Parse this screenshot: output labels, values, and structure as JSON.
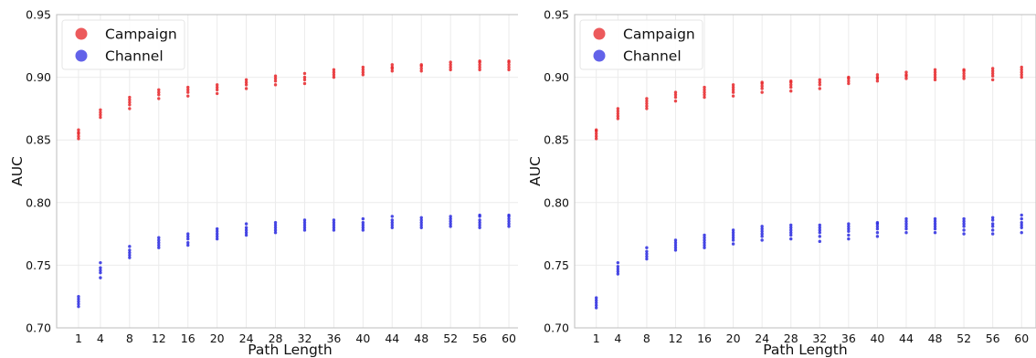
{
  "chart_data": [
    {
      "type": "scatter",
      "title": "",
      "xlabel": "Path Length",
      "ylabel": "AUC",
      "x_ticks": [
        1,
        4,
        8,
        12,
        16,
        20,
        24,
        28,
        32,
        36,
        40,
        44,
        48,
        52,
        56,
        60
      ],
      "y_ticks": [
        0.7,
        0.75,
        0.8,
        0.85,
        0.9,
        0.95
      ],
      "y_tick_labels": [
        "0.70",
        "0.75",
        "0.80",
        "0.85",
        "0.90",
        "0.95"
      ],
      "xlim": [
        -2,
        62
      ],
      "ylim": [
        0.7,
        0.95
      ],
      "grid": true,
      "legend": "top-left",
      "series": [
        {
          "name": "Campaign",
          "color": "#e8272a",
          "points": [
            {
              "x": 1,
              "ys": [
                0.851,
                0.853,
                0.855,
                0.856,
                0.858
              ]
            },
            {
              "x": 4,
              "ys": [
                0.868,
                0.87,
                0.872,
                0.874
              ]
            },
            {
              "x": 8,
              "ys": [
                0.875,
                0.878,
                0.88,
                0.882,
                0.884
              ]
            },
            {
              "x": 12,
              "ys": [
                0.883,
                0.886,
                0.888,
                0.89
              ]
            },
            {
              "x": 16,
              "ys": [
                0.885,
                0.888,
                0.89,
                0.892
              ]
            },
            {
              "x": 20,
              "ys": [
                0.887,
                0.89,
                0.892,
                0.894
              ]
            },
            {
              "x": 24,
              "ys": [
                0.891,
                0.894,
                0.896,
                0.898
              ]
            },
            {
              "x": 28,
              "ys": [
                0.894,
                0.897,
                0.899,
                0.901
              ]
            },
            {
              "x": 32,
              "ys": [
                0.895,
                0.898,
                0.9,
                0.903
              ]
            },
            {
              "x": 36,
              "ys": [
                0.9,
                0.902,
                0.904,
                0.906
              ]
            },
            {
              "x": 40,
              "ys": [
                0.902,
                0.904,
                0.906,
                0.908
              ]
            },
            {
              "x": 44,
              "ys": [
                0.905,
                0.907,
                0.908,
                0.91
              ]
            },
            {
              "x": 48,
              "ys": [
                0.905,
                0.907,
                0.909,
                0.91
              ]
            },
            {
              "x": 52,
              "ys": [
                0.906,
                0.908,
                0.91,
                0.912
              ]
            },
            {
              "x": 56,
              "ys": [
                0.906,
                0.908,
                0.91,
                0.912,
                0.913
              ]
            },
            {
              "x": 60,
              "ys": [
                0.906,
                0.908,
                0.91,
                0.912,
                0.913
              ]
            }
          ]
        },
        {
          "name": "Channel",
          "color": "#2a2ae0",
          "points": [
            {
              "x": 1,
              "ys": [
                0.717,
                0.719,
                0.721,
                0.723,
                0.725
              ]
            },
            {
              "x": 4,
              "ys": [
                0.74,
                0.744,
                0.746,
                0.748,
                0.752
              ]
            },
            {
              "x": 8,
              "ys": [
                0.756,
                0.758,
                0.76,
                0.762,
                0.765
              ]
            },
            {
              "x": 12,
              "ys": [
                0.764,
                0.766,
                0.768,
                0.77,
                0.772
              ]
            },
            {
              "x": 16,
              "ys": [
                0.766,
                0.768,
                0.771,
                0.773,
                0.775
              ]
            },
            {
              "x": 20,
              "ys": [
                0.771,
                0.773,
                0.775,
                0.777,
                0.779
              ]
            },
            {
              "x": 24,
              "ys": [
                0.774,
                0.776,
                0.778,
                0.78,
                0.783
              ]
            },
            {
              "x": 28,
              "ys": [
                0.776,
                0.778,
                0.78,
                0.782,
                0.784
              ]
            },
            {
              "x": 32,
              "ys": [
                0.778,
                0.78,
                0.782,
                0.784,
                0.786
              ]
            },
            {
              "x": 36,
              "ys": [
                0.778,
                0.78,
                0.782,
                0.784,
                0.786
              ]
            },
            {
              "x": 40,
              "ys": [
                0.778,
                0.78,
                0.782,
                0.784,
                0.787
              ]
            },
            {
              "x": 44,
              "ys": [
                0.78,
                0.782,
                0.784,
                0.786,
                0.789
              ]
            },
            {
              "x": 48,
              "ys": [
                0.78,
                0.782,
                0.784,
                0.786,
                0.788
              ]
            },
            {
              "x": 52,
              "ys": [
                0.781,
                0.783,
                0.785,
                0.787,
                0.789
              ]
            },
            {
              "x": 56,
              "ys": [
                0.78,
                0.782,
                0.784,
                0.786,
                0.789,
                0.79
              ]
            },
            {
              "x": 60,
              "ys": [
                0.781,
                0.783,
                0.785,
                0.787,
                0.789,
                0.79
              ]
            }
          ]
        }
      ]
    },
    {
      "type": "scatter",
      "title": "",
      "xlabel": "Path Length",
      "ylabel": "AUC",
      "x_ticks": [
        1,
        4,
        8,
        12,
        16,
        20,
        24,
        28,
        32,
        36,
        40,
        44,
        48,
        52,
        56,
        60
      ],
      "y_ticks": [
        0.7,
        0.75,
        0.8,
        0.85,
        0.9,
        0.95
      ],
      "y_tick_labels": [
        "0.70",
        "0.75",
        "0.80",
        "0.85",
        "0.90",
        "0.95"
      ],
      "xlim": [
        -2,
        62
      ],
      "ylim": [
        0.7,
        0.95
      ],
      "grid": true,
      "legend": "top-left",
      "series": [
        {
          "name": "Campaign",
          "color": "#e8272a",
          "points": [
            {
              "x": 1,
              "ys": [
                0.851,
                0.853,
                0.855,
                0.857,
                0.858
              ]
            },
            {
              "x": 4,
              "ys": [
                0.867,
                0.869,
                0.871,
                0.873,
                0.875
              ]
            },
            {
              "x": 8,
              "ys": [
                0.875,
                0.877,
                0.879,
                0.881,
                0.883
              ]
            },
            {
              "x": 12,
              "ys": [
                0.881,
                0.884,
                0.886,
                0.888
              ]
            },
            {
              "x": 16,
              "ys": [
                0.884,
                0.886,
                0.888,
                0.89,
                0.892
              ]
            },
            {
              "x": 20,
              "ys": [
                0.885,
                0.888,
                0.89,
                0.892,
                0.894
              ]
            },
            {
              "x": 24,
              "ys": [
                0.888,
                0.891,
                0.893,
                0.895,
                0.896
              ]
            },
            {
              "x": 28,
              "ys": [
                0.889,
                0.892,
                0.894,
                0.896,
                0.897
              ]
            },
            {
              "x": 32,
              "ys": [
                0.891,
                0.894,
                0.896,
                0.898
              ]
            },
            {
              "x": 36,
              "ys": [
                0.895,
                0.897,
                0.899,
                0.9
              ]
            },
            {
              "x": 40,
              "ys": [
                0.897,
                0.899,
                0.9,
                0.902
              ]
            },
            {
              "x": 44,
              "ys": [
                0.899,
                0.901,
                0.902,
                0.904
              ]
            },
            {
              "x": 48,
              "ys": [
                0.898,
                0.9,
                0.902,
                0.904,
                0.906
              ]
            },
            {
              "x": 52,
              "ys": [
                0.899,
                0.901,
                0.903,
                0.905,
                0.906
              ]
            },
            {
              "x": 56,
              "ys": [
                0.898,
                0.901,
                0.903,
                0.905,
                0.907
              ]
            },
            {
              "x": 60,
              "ys": [
                0.9,
                0.902,
                0.904,
                0.906,
                0.908
              ]
            }
          ]
        },
        {
          "name": "Channel",
          "color": "#2a2ae0",
          "points": [
            {
              "x": 1,
              "ys": [
                0.716,
                0.718,
                0.72,
                0.722,
                0.724
              ]
            },
            {
              "x": 4,
              "ys": [
                0.743,
                0.745,
                0.747,
                0.749,
                0.752
              ]
            },
            {
              "x": 8,
              "ys": [
                0.755,
                0.757,
                0.759,
                0.761,
                0.764
              ]
            },
            {
              "x": 12,
              "ys": [
                0.762,
                0.764,
                0.766,
                0.768,
                0.77
              ]
            },
            {
              "x": 16,
              "ys": [
                0.764,
                0.766,
                0.768,
                0.77,
                0.772,
                0.774
              ]
            },
            {
              "x": 20,
              "ys": [
                0.767,
                0.77,
                0.772,
                0.774,
                0.776,
                0.778
              ]
            },
            {
              "x": 24,
              "ys": [
                0.77,
                0.773,
                0.775,
                0.777,
                0.779,
                0.781
              ]
            },
            {
              "x": 28,
              "ys": [
                0.771,
                0.774,
                0.776,
                0.778,
                0.78,
                0.782
              ]
            },
            {
              "x": 32,
              "ys": [
                0.769,
                0.773,
                0.776,
                0.778,
                0.78,
                0.782
              ]
            },
            {
              "x": 36,
              "ys": [
                0.771,
                0.774,
                0.777,
                0.779,
                0.781,
                0.783
              ]
            },
            {
              "x": 40,
              "ys": [
                0.773,
                0.776,
                0.779,
                0.781,
                0.783,
                0.784
              ]
            },
            {
              "x": 44,
              "ys": [
                0.776,
                0.779,
                0.781,
                0.783,
                0.785,
                0.787
              ]
            },
            {
              "x": 48,
              "ys": [
                0.776,
                0.779,
                0.781,
                0.783,
                0.785,
                0.787
              ]
            },
            {
              "x": 52,
              "ys": [
                0.775,
                0.778,
                0.781,
                0.783,
                0.785,
                0.787
              ]
            },
            {
              "x": 56,
              "ys": [
                0.775,
                0.778,
                0.781,
                0.783,
                0.786,
                0.788
              ]
            },
            {
              "x": 60,
              "ys": [
                0.776,
                0.78,
                0.782,
                0.784,
                0.787,
                0.79
              ]
            }
          ]
        }
      ]
    }
  ]
}
